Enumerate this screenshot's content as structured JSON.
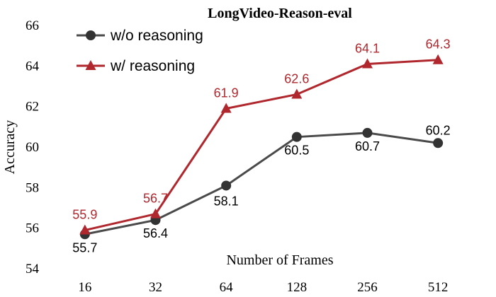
{
  "chart_data": {
    "type": "line",
    "title": "LongVideo-Reason-eval",
    "xlabel": "Number of Frames",
    "ylabel": "Accuracy",
    "categories": [
      "16",
      "32",
      "64",
      "128",
      "256",
      "512"
    ],
    "ylim": [
      54,
      66
    ],
    "yticks": [
      54,
      56,
      58,
      60,
      62,
      64,
      66
    ],
    "grid": false,
    "legend_position": "top-left",
    "series": [
      {
        "name": "w/o reasoning",
        "values": [
          55.7,
          56.4,
          58.1,
          60.5,
          60.7,
          60.2
        ],
        "labels": [
          "55.7",
          "56.4",
          "58.1",
          "60.5",
          "60.7",
          "60.2"
        ],
        "color": "#4a4a4a",
        "marker": "circle"
      },
      {
        "name": "w/ reasoning",
        "values": [
          55.9,
          56.7,
          61.9,
          62.6,
          64.1,
          64.3
        ],
        "labels": [
          "55.9",
          "56.7",
          "61.9",
          "62.6",
          "64.1",
          "64.3"
        ],
        "color": "#b0272e",
        "marker": "triangle"
      }
    ]
  }
}
